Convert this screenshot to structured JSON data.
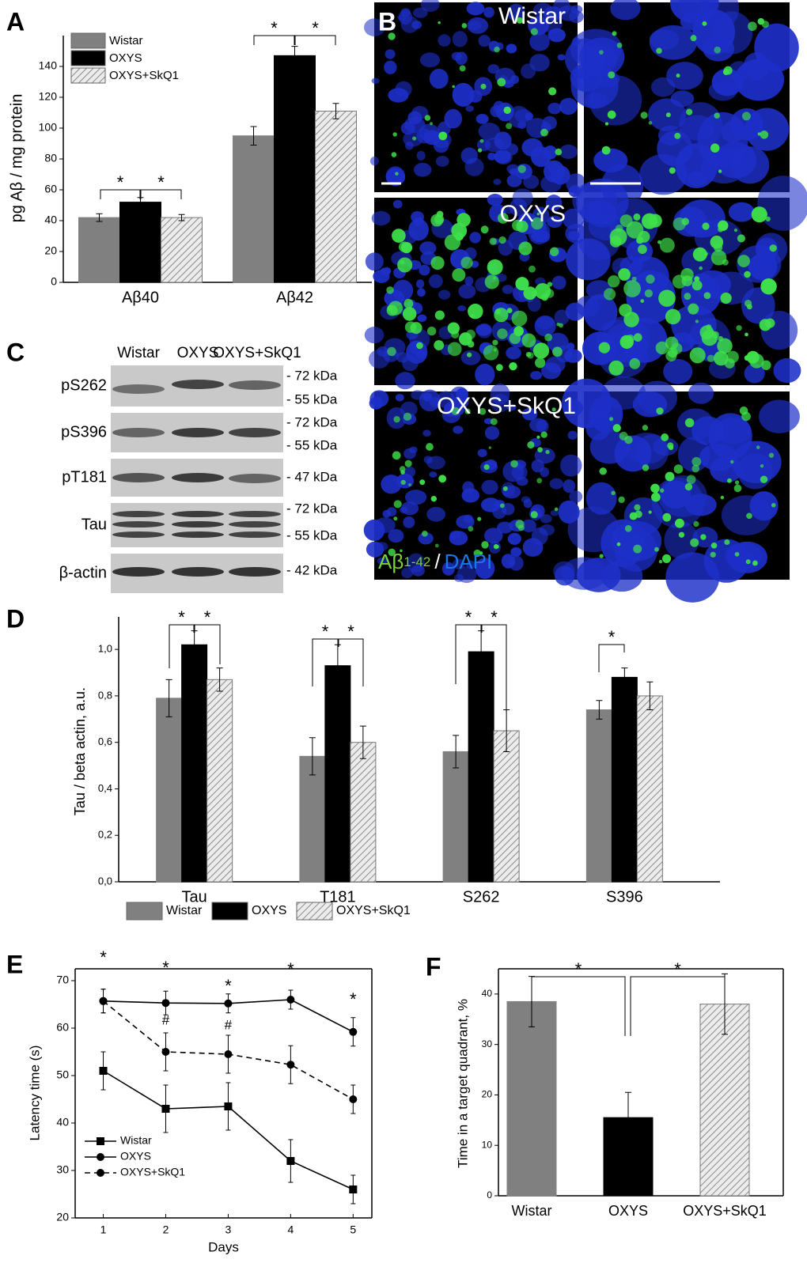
{
  "chart_data": [
    {
      "type": "bar",
      "panel": "A",
      "y_label": "pg Aβ / mg protein",
      "categories": [
        "Aβ40",
        "Aβ42"
      ],
      "series": [
        {
          "name": "Wistar",
          "color": "#808080",
          "values": [
            42,
            95
          ],
          "errors": [
            2.5,
            6
          ]
        },
        {
          "name": "OXYS",
          "color": "#000000",
          "values": [
            52,
            147
          ],
          "errors": [
            3,
            6
          ]
        },
        {
          "name": "OXYS+SkQ1",
          "color": "#e6e6e6",
          "pattern": "hatch",
          "values": [
            42,
            111
          ],
          "errors": [
            2,
            5
          ]
        }
      ],
      "ylim": [
        0,
        160
      ],
      "yticks": [
        0,
        20,
        40,
        60,
        80,
        100,
        120,
        140
      ],
      "annotations": [
        "*",
        "*",
        "*",
        "*"
      ],
      "legend": "top-left"
    },
    {
      "type": "bar",
      "panel": "D",
      "y_label": "Tau / beta actin, a.u.",
      "categories": [
        "Tau",
        "T181",
        "S262",
        "S396"
      ],
      "series": [
        {
          "name": "Wistar",
          "color": "#808080",
          "values": [
            0.79,
            0.54,
            0.56,
            0.74
          ],
          "errors": [
            0.08,
            0.08,
            0.07,
            0.04
          ]
        },
        {
          "name": "OXYS",
          "color": "#000000",
          "values": [
            1.02,
            0.93,
            0.99,
            0.88
          ],
          "errors": [
            0.06,
            0.09,
            0.09,
            0.04
          ]
        },
        {
          "name": "OXYS+SkQ1",
          "color": "#e6e6e6",
          "pattern": "hatch",
          "values": [
            0.87,
            0.6,
            0.65,
            0.8
          ],
          "errors": [
            0.05,
            0.07,
            0.09,
            0.06
          ]
        }
      ],
      "ylim": [
        0,
        1.14
      ],
      "yticks": [
        {
          "value": 0,
          "label": "0,0"
        },
        {
          "value": 0.2,
          "label": "0,2"
        },
        {
          "value": 0.4,
          "label": "0,4"
        },
        {
          "value": 0.6,
          "label": "0,6"
        },
        {
          "value": 0.8,
          "label": "0,8"
        },
        {
          "value": 1,
          "label": "1,0"
        }
      ],
      "annotations": [
        "*",
        "*",
        "*",
        "*",
        "*",
        "*",
        "*"
      ],
      "legend": "bottom"
    },
    {
      "type": "line",
      "panel": "E",
      "x_label": "Days",
      "y_label": "Latency time (s)",
      "x": [
        1,
        2,
        3,
        4,
        5
      ],
      "series": [
        {
          "name": "Wistar",
          "color": "#000000",
          "marker": "square",
          "values": [
            51,
            43,
            43.5,
            32,
            26
          ],
          "errors": [
            4,
            5,
            5,
            4.5,
            3
          ]
        },
        {
          "name": "OXYS",
          "color": "#000000",
          "marker": "circle",
          "values": [
            65.7,
            65.3,
            65.2,
            66,
            59.2
          ],
          "errors": [
            2.5,
            2.5,
            2,
            2,
            3
          ]
        },
        {
          "name": "OXYS+SkQ1",
          "color": "#000000",
          "marker": "circle",
          "dash": true,
          "values": [
            65.7,
            55,
            54.5,
            52.3,
            45
          ],
          "errors": [
            2.5,
            4,
            4,
            4,
            3
          ]
        }
      ],
      "xlim": [
        0.55,
        5.3
      ],
      "xticks": [
        1,
        2,
        3,
        4,
        5
      ],
      "ylim": [
        20,
        72.5
      ],
      "yticks": [
        20,
        30,
        40,
        50,
        60,
        70
      ],
      "annotations": [
        "*",
        "*",
        "*",
        "*",
        "*",
        "#",
        "#"
      ],
      "legend": "bottom-left"
    },
    {
      "type": "bar",
      "panel": "F",
      "y_label": "Time in a target quadrant, %",
      "categories": [
        "Wistar",
        "OXYS",
        "OXYS+SkQ1"
      ],
      "values": [
        38.5,
        15.5,
        38
      ],
      "errors": [
        5,
        5,
        6
      ],
      "colors": [
        "#808080",
        "#000000",
        "#e6e6e6"
      ],
      "hatched": [
        false,
        false,
        true
      ],
      "ylim": [
        0,
        45
      ],
      "yticks": [
        0,
        10,
        20,
        30,
        40
      ],
      "annotations": [
        "*",
        "*"
      ]
    }
  ],
  "micrographs": {
    "panel": "B",
    "rows": [
      "Wistar",
      "OXYS",
      "OXYS+SkQ1"
    ],
    "legend": {
      "stain": "Aβ",
      "subscript": "1-42",
      "separator": "/",
      "counterstain": "DAPI"
    }
  },
  "blot": {
    "panel": "C",
    "lanes": [
      "Wistar",
      "OXYS",
      "OXYS+SkQ1"
    ],
    "rows": [
      {
        "label": "pS262",
        "markers": [
          "- 72 kDa",
          "- 55 kDa"
        ]
      },
      {
        "label": "pS396",
        "markers": [
          "- 72 kDa",
          "- 55 kDa"
        ]
      },
      {
        "label": "pT181",
        "markers": [
          "- 47 kDa"
        ]
      },
      {
        "label": "Tau",
        "markers": [
          "- 72 kDa",
          "- 55 kDa"
        ]
      },
      {
        "label": "β-actin",
        "markers": [
          "- 42 kDa"
        ]
      }
    ]
  }
}
